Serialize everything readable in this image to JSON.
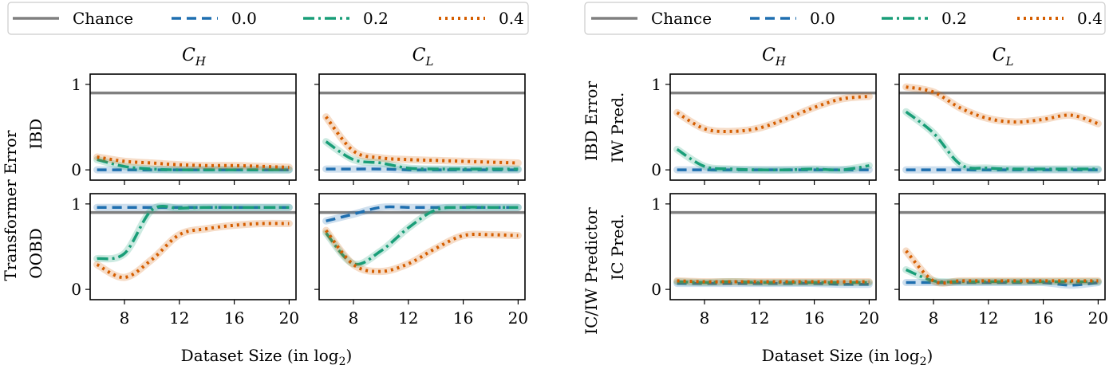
{
  "figure": {
    "left": {
      "xlabel_main": "Dataset Size (in log",
      "xlabel_sub": "2",
      "xlabel_close": ")",
      "ylabel": "Transformer Error",
      "col_titles": [
        {
          "base": "C",
          "sub": "H"
        },
        {
          "base": "C",
          "sub": "L"
        }
      ],
      "row_labels": [
        "IBD",
        "OOBD"
      ]
    },
    "right": {
      "xlabel_main": "Dataset Size (in log",
      "xlabel_sub": "2",
      "xlabel_close": ")",
      "ylabel_top": "IBD Error",
      "ylabel_bottom": "IC/IW Predictor",
      "col_titles": [
        {
          "base": "C",
          "sub": "H"
        },
        {
          "base": "C",
          "sub": "L"
        }
      ],
      "row_labels": [
        "IW Pred.",
        "IC Pred."
      ]
    },
    "legend": [
      {
        "label": "Chance",
        "color": "#808080",
        "style": "solid"
      },
      {
        "label": "0.0",
        "color": "#1f6fb0",
        "style": "dashed"
      },
      {
        "label": "0.2",
        "color": "#199e78",
        "style": "dashdot"
      },
      {
        "label": "0.4",
        "color": "#d55e00",
        "style": "dotted"
      }
    ]
  },
  "chart_data": [
    {
      "type": "line",
      "panel": "left",
      "row": "IBD",
      "col": "C_H",
      "xlim": [
        5.5,
        20.5
      ],
      "ylim": [
        -0.12,
        1.12
      ],
      "xticks": [
        8,
        12,
        16,
        20
      ],
      "yticks": [
        0,
        1
      ],
      "chance": 0.9,
      "x": [
        6,
        8,
        10,
        12,
        14,
        16,
        18,
        20
      ],
      "series": [
        {
          "name": "0.0",
          "values": [
            0.0,
            0.0,
            0.0,
            0.0,
            0.0,
            0.0,
            0.0,
            0.0
          ]
        },
        {
          "name": "0.2",
          "values": [
            0.12,
            0.04,
            0.01,
            0.0,
            0.0,
            0.0,
            0.0,
            0.0
          ]
        },
        {
          "name": "0.4",
          "values": [
            0.15,
            0.1,
            0.08,
            0.06,
            0.05,
            0.05,
            0.04,
            0.03
          ]
        }
      ]
    },
    {
      "type": "line",
      "panel": "left",
      "row": "IBD",
      "col": "C_L",
      "xlim": [
        5.5,
        20.5
      ],
      "ylim": [
        -0.12,
        1.12
      ],
      "xticks": [
        8,
        12,
        16,
        20
      ],
      "yticks": [
        0,
        1
      ],
      "chance": 0.9,
      "x": [
        6,
        8,
        10,
        12,
        14,
        16,
        18,
        20
      ],
      "series": [
        {
          "name": "0.0",
          "values": [
            0.01,
            0.01,
            0.01,
            0.0,
            0.0,
            0.0,
            0.0,
            0.0
          ]
        },
        {
          "name": "0.2",
          "values": [
            0.33,
            0.12,
            0.08,
            0.02,
            0.01,
            0.01,
            0.01,
            0.01
          ]
        },
        {
          "name": "0.4",
          "values": [
            0.62,
            0.22,
            0.14,
            0.12,
            0.11,
            0.1,
            0.09,
            0.08
          ]
        }
      ]
    },
    {
      "type": "line",
      "panel": "left",
      "row": "OOBD",
      "col": "C_H",
      "xlim": [
        5.5,
        20.5
      ],
      "ylim": [
        -0.12,
        1.12
      ],
      "xticks": [
        8,
        12,
        16,
        20
      ],
      "yticks": [
        0,
        1
      ],
      "chance": 0.9,
      "x": [
        6,
        8,
        10,
        12,
        14,
        16,
        18,
        20
      ],
      "series": [
        {
          "name": "0.0",
          "values": [
            0.96,
            0.96,
            0.96,
            0.96,
            0.96,
            0.96,
            0.96,
            0.96
          ]
        },
        {
          "name": "0.2",
          "values": [
            0.36,
            0.42,
            0.93,
            0.95,
            0.96,
            0.96,
            0.96,
            0.96
          ]
        },
        {
          "name": "0.4",
          "values": [
            0.29,
            0.14,
            0.35,
            0.64,
            0.71,
            0.75,
            0.77,
            0.77
          ]
        }
      ]
    },
    {
      "type": "line",
      "panel": "left",
      "row": "OOBD",
      "col": "C_L",
      "xlim": [
        5.5,
        20.5
      ],
      "ylim": [
        -0.12,
        1.12
      ],
      "xticks": [
        8,
        12,
        16,
        20
      ],
      "yticks": [
        0,
        1
      ],
      "chance": 0.9,
      "x": [
        6,
        8,
        10,
        12,
        14,
        16,
        18,
        20
      ],
      "series": [
        {
          "name": "0.0",
          "values": [
            0.8,
            0.88,
            0.96,
            0.96,
            0.96,
            0.96,
            0.96,
            0.96
          ]
        },
        {
          "name": "0.2",
          "values": [
            0.66,
            0.3,
            0.45,
            0.72,
            0.93,
            0.96,
            0.96,
            0.96
          ]
        },
        {
          "name": "0.4",
          "values": [
            0.69,
            0.29,
            0.21,
            0.3,
            0.48,
            0.63,
            0.64,
            0.63
          ]
        }
      ]
    },
    {
      "type": "line",
      "panel": "right",
      "row": "IW Pred.",
      "col": "C_H",
      "xlim": [
        5.5,
        20.5
      ],
      "ylim": [
        -0.12,
        1.12
      ],
      "xticks": [
        8,
        12,
        16,
        20
      ],
      "yticks": [
        0,
        1
      ],
      "chance": 0.9,
      "x": [
        6,
        8,
        10,
        12,
        14,
        16,
        18,
        20
      ],
      "series": [
        {
          "name": "0.0",
          "values": [
            0.0,
            0.0,
            0.0,
            0.0,
            0.0,
            0.0,
            0.0,
            0.0
          ]
        },
        {
          "name": "0.2",
          "values": [
            0.24,
            0.04,
            0.01,
            0.0,
            0.0,
            0.01,
            0.0,
            0.05
          ]
        },
        {
          "name": "0.4",
          "values": [
            0.67,
            0.48,
            0.45,
            0.49,
            0.6,
            0.73,
            0.83,
            0.86
          ]
        }
      ]
    },
    {
      "type": "line",
      "panel": "right",
      "row": "IW Pred.",
      "col": "C_L",
      "xlim": [
        5.5,
        20.5
      ],
      "ylim": [
        -0.12,
        1.12
      ],
      "xticks": [
        8,
        12,
        16,
        20
      ],
      "yticks": [
        0,
        1
      ],
      "chance": 0.9,
      "x": [
        6,
        8,
        10,
        12,
        14,
        16,
        18,
        20
      ],
      "series": [
        {
          "name": "0.0",
          "values": [
            0.0,
            0.0,
            0.0,
            0.0,
            0.0,
            0.0,
            0.0,
            0.0
          ]
        },
        {
          "name": "0.2",
          "values": [
            0.68,
            0.43,
            0.06,
            0.02,
            0.01,
            0.01,
            0.01,
            0.01
          ]
        },
        {
          "name": "0.4",
          "values": [
            0.97,
            0.91,
            0.72,
            0.6,
            0.56,
            0.59,
            0.64,
            0.54
          ]
        }
      ]
    },
    {
      "type": "line",
      "panel": "right",
      "row": "IC Pred.",
      "col": "C_H",
      "xlim": [
        5.5,
        20.5
      ],
      "ylim": [
        -0.12,
        1.12
      ],
      "xticks": [
        8,
        12,
        16,
        20
      ],
      "yticks": [
        0,
        1
      ],
      "chance": 0.9,
      "x": [
        6,
        8,
        10,
        12,
        14,
        16,
        18,
        20
      ],
      "series": [
        {
          "name": "0.0",
          "values": [
            0.07,
            0.07,
            0.07,
            0.07,
            0.07,
            0.07,
            0.06,
            0.06
          ]
        },
        {
          "name": "0.2",
          "values": [
            0.09,
            0.08,
            0.09,
            0.08,
            0.08,
            0.08,
            0.08,
            0.08
          ]
        },
        {
          "name": "0.4",
          "values": [
            0.1,
            0.09,
            0.09,
            0.09,
            0.09,
            0.09,
            0.09,
            0.09
          ]
        }
      ]
    },
    {
      "type": "line",
      "panel": "right",
      "row": "IC Pred.",
      "col": "C_L",
      "xlim": [
        5.5,
        20.5
      ],
      "ylim": [
        -0.12,
        1.12
      ],
      "xticks": [
        8,
        12,
        16,
        20
      ],
      "yticks": [
        0,
        1
      ],
      "chance": 0.9,
      "x": [
        6,
        8,
        10,
        12,
        14,
        16,
        18,
        20
      ],
      "series": [
        {
          "name": "0.0",
          "values": [
            0.08,
            0.08,
            0.08,
            0.08,
            0.08,
            0.08,
            0.05,
            0.08
          ]
        },
        {
          "name": "0.2",
          "values": [
            0.23,
            0.1,
            0.09,
            0.09,
            0.09,
            0.09,
            0.09,
            0.09
          ]
        },
        {
          "name": "0.4",
          "values": [
            0.45,
            0.1,
            0.1,
            0.1,
            0.1,
            0.1,
            0.1,
            0.1
          ]
        }
      ]
    }
  ]
}
